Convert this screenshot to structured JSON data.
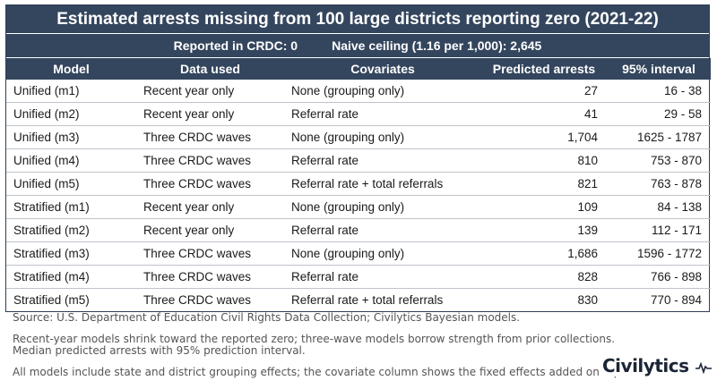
{
  "title": "Estimated arrests missing from 100 large districts reporting zero (2021-22)",
  "subtitle": {
    "reported": "Reported in CRDC: 0",
    "ceiling": "Naive ceiling (1.16 per 1,000): 2,645"
  },
  "columns": [
    "Model",
    "Data used",
    "Covariates",
    "Predicted arrests",
    "95% interval"
  ],
  "rows": [
    [
      "Unified (m1)",
      "Recent year only",
      "None (grouping only)",
      "27",
      "16 - 38"
    ],
    [
      "Unified (m2)",
      "Recent year only",
      "Referral rate",
      "41",
      "29 - 58"
    ],
    [
      "Unified (m3)",
      "Three CRDC waves",
      "None (grouping only)",
      "1,704",
      "1625 - 1787"
    ],
    [
      "Unified (m4)",
      "Three CRDC waves",
      "Referral rate",
      "810",
      "753 - 870"
    ],
    [
      "Unified (m5)",
      "Three CRDC waves",
      "Referral rate + total referrals",
      "821",
      "763 - 878"
    ],
    [
      "Stratified (m1)",
      "Recent year only",
      "None (grouping only)",
      "109",
      "84 - 138"
    ],
    [
      "Stratified (m2)",
      "Recent year only",
      "Referral rate",
      "139",
      "112 - 171"
    ],
    [
      "Stratified (m3)",
      "Three CRDC waves",
      "None (grouping only)",
      "1,686",
      "1596 - 1772"
    ],
    [
      "Stratified (m4)",
      "Three CRDC waves",
      "Referral rate",
      "828",
      "766 - 898"
    ],
    [
      "Stratified (m5)",
      "Three CRDC waves",
      "Referral rate + total referrals",
      "830",
      "770 - 894"
    ]
  ],
  "footnotes": {
    "source": "Source: U.S. Department of Education Civil Rights Data Collection; Civilytics Bayesian models.",
    "note1": "Recent-year models shrink toward the reported zero; three-wave models borrow strength from prior collections. Median predicted arrests with 95% prediction interval.",
    "note2": "All models include state and district grouping effects; the covariate column shows the fixed effects added on top."
  },
  "logo": {
    "text": "Civilytics",
    "icon": "pulse-line-icon"
  },
  "colors": {
    "header_bg": "#34465e",
    "header_text": "#ffffff",
    "row_border": "#bfc5cc",
    "footnote": "#555555"
  }
}
